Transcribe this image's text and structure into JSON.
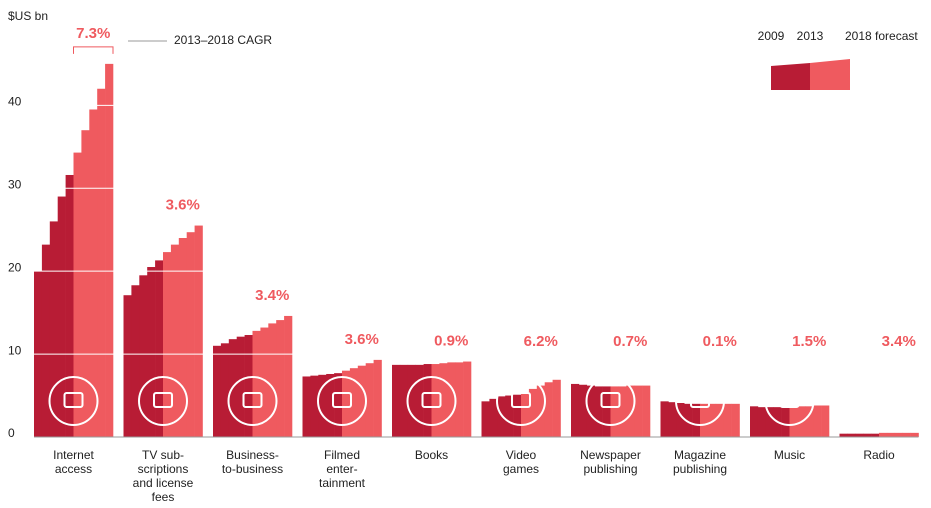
{
  "chart_data": {
    "type": "stepped-bar",
    "y_label": "$US bn",
    "annotation": "2013–2018 CAGR",
    "legend": {
      "labels": [
        "2009",
        "2013",
        "2018 forecast"
      ]
    },
    "x": [
      "2009",
      "2010",
      "2011",
      "2012",
      "2013",
      "2014",
      "2015",
      "2016",
      "2017",
      "2018"
    ],
    "year_colors": [
      "#b81c35",
      "#b81c35",
      "#b81c35",
      "#b81c35",
      "#b81c35",
      "#ef5a5f",
      "#ef5a5f",
      "#ef5a5f",
      "#ef5a5f",
      "#ef5a5f"
    ],
    "categories": [
      [
        "Internet",
        "access"
      ],
      [
        "TV sub-",
        "scriptions",
        "and license",
        "fees"
      ],
      [
        "Business-",
        "to-business"
      ],
      [
        "Filmed",
        "enter-",
        "tainment"
      ],
      [
        "Books"
      ],
      [
        "Video",
        "games"
      ],
      [
        "Newspaper",
        "publishing"
      ],
      [
        "Magazine",
        "publishing"
      ],
      [
        "Music"
      ],
      [
        "Radio"
      ]
    ],
    "series": [
      {
        "values": [
          20.0,
          23.2,
          26.0,
          29.0,
          31.6,
          34.3,
          37.0,
          39.5,
          42.0,
          45.0
        ]
      },
      {
        "values": [
          17.1,
          18.3,
          19.5,
          20.5,
          21.3,
          22.3,
          23.2,
          24.0,
          24.7,
          25.5
        ]
      },
      {
        "values": [
          11.0,
          11.3,
          11.8,
          12.1,
          12.3,
          12.8,
          13.2,
          13.7,
          14.1,
          14.6
        ]
      },
      {
        "values": [
          7.3,
          7.4,
          7.5,
          7.6,
          7.7,
          8.0,
          8.3,
          8.6,
          8.9,
          9.3
        ]
      },
      {
        "values": [
          8.7,
          8.7,
          8.7,
          8.7,
          8.8,
          8.8,
          8.9,
          9.0,
          9.0,
          9.1
        ]
      },
      {
        "values": [
          4.3,
          4.6,
          4.9,
          5.0,
          5.1,
          5.4,
          5.8,
          6.2,
          6.6,
          6.9
        ]
      },
      {
        "values": [
          6.4,
          6.3,
          6.2,
          6.1,
          6.1,
          6.1,
          6.1,
          6.2,
          6.2,
          6.2
        ]
      },
      {
        "values": [
          4.3,
          4.2,
          4.1,
          4.0,
          4.0,
          4.0,
          4.0,
          4.0,
          4.0,
          4.0
        ]
      },
      {
        "values": [
          3.7,
          3.6,
          3.6,
          3.6,
          3.6,
          3.6,
          3.7,
          3.7,
          3.8,
          3.8
        ]
      },
      {
        "values": [
          0.4,
          0.4,
          0.4,
          0.4,
          0.4,
          0.5,
          0.5,
          0.5,
          0.5,
          0.5
        ]
      }
    ],
    "cagr": [
      7.3,
      3.6,
      3.4,
      3.6,
      0.9,
      6.2,
      0.7,
      0.1,
      1.5,
      3.4
    ],
    "cagr_labels": [
      "7.3%",
      "3.6%",
      "3.4%",
      "3.6%",
      "0.9%",
      "6.2%",
      "0.7%",
      "0.1%",
      "1.5%",
      "3.4%"
    ],
    "cagr_color": "#ef5a5f",
    "ylim": [
      0,
      48
    ],
    "yticks": [
      0,
      10,
      20,
      30,
      40
    ],
    "grid": true
  }
}
